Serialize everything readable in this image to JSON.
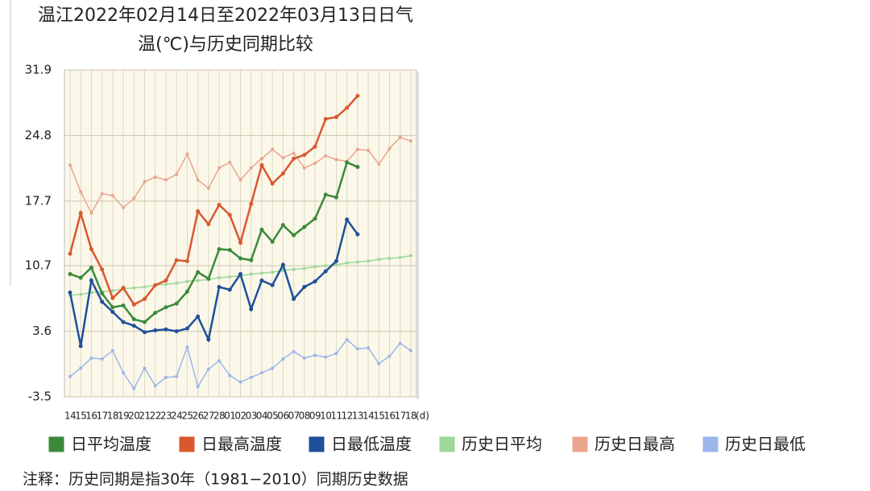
{
  "chart_data": {
    "type": "line",
    "title": [
      "温江2022年02月14日至2022年03月13日日气",
      "温(℃)与历史同期比较"
    ],
    "x_unit": "(d)",
    "note": "注释：历史同期是指30年（1981−2010）同期历史数据",
    "categories": [
      "14",
      "15",
      "16",
      "17",
      "18",
      "19",
      "20",
      "21",
      "22",
      "23",
      "24",
      "25",
      "26",
      "27",
      "28",
      "01",
      "02",
      "03",
      "04",
      "05",
      "06",
      "07",
      "08",
      "09",
      "10",
      "11",
      "12",
      "13",
      "14",
      "15",
      "16",
      "17",
      "18"
    ],
    "ylim": [
      -3.5,
      31.9
    ],
    "yticks": [
      -3.5,
      3.6,
      10.7,
      17.7,
      24.8,
      31.9
    ],
    "grid": true,
    "series": [
      {
        "name": "日平均温度",
        "color": "#3a8a3a",
        "values": [
          9.8,
          9.4,
          10.5,
          7.7,
          6.2,
          6.4,
          4.9,
          4.6,
          5.6,
          6.2,
          6.6,
          7.9,
          10.0,
          9.3,
          12.5,
          12.4,
          11.5,
          11.3,
          14.6,
          13.3,
          15.1,
          14.0,
          14.9,
          15.8,
          18.4,
          18.1,
          21.9,
          21.4,
          null,
          null,
          null,
          null,
          null
        ]
      },
      {
        "name": "日最高温度",
        "color": "#d9582e",
        "values": [
          12.0,
          16.4,
          12.5,
          10.3,
          7.2,
          8.3,
          6.5,
          7.1,
          8.6,
          9.1,
          11.3,
          11.2,
          16.6,
          15.2,
          17.3,
          16.2,
          13.2,
          17.4,
          21.6,
          19.6,
          20.7,
          22.3,
          22.7,
          23.6,
          26.6,
          26.8,
          27.8,
          29.1,
          null,
          null,
          null,
          null,
          null
        ]
      },
      {
        "name": "日最低温度",
        "color": "#1f4f9a",
        "values": [
          7.8,
          2.0,
          9.1,
          6.8,
          5.7,
          4.6,
          4.2,
          3.5,
          3.7,
          3.8,
          3.6,
          3.9,
          5.2,
          2.7,
          8.4,
          8.1,
          9.8,
          6.0,
          9.1,
          8.6,
          10.8,
          7.1,
          8.4,
          9.0,
          10.1,
          11.2,
          15.7,
          14.1,
          null,
          null,
          null,
          null,
          null
        ]
      },
      {
        "name": "历史日平均",
        "color": "#9ed79a",
        "values": [
          7.5,
          7.6,
          7.8,
          7.9,
          8.0,
          8.2,
          8.3,
          8.4,
          8.6,
          8.7,
          8.8,
          9.0,
          9.1,
          9.2,
          9.4,
          9.5,
          9.6,
          9.8,
          9.9,
          10.0,
          10.2,
          10.3,
          10.4,
          10.6,
          10.7,
          10.8,
          11.0,
          11.1,
          11.2,
          11.4,
          11.5,
          11.6,
          11.8
        ]
      },
      {
        "name": "历史日最高",
        "color": "#eaa58c",
        "values": [
          21.6,
          18.7,
          16.4,
          18.5,
          18.3,
          17.0,
          18.0,
          19.8,
          20.3,
          20.0,
          20.6,
          22.8,
          20.0,
          19.1,
          21.3,
          21.9,
          20.0,
          21.3,
          22.3,
          23.3,
          22.4,
          22.9,
          21.3,
          21.8,
          22.6,
          22.2,
          22.0,
          23.3,
          23.2,
          21.7,
          23.4,
          24.6,
          24.2
        ]
      },
      {
        "name": "历史日最低",
        "color": "#9db6ea",
        "values": [
          -1.3,
          -0.4,
          0.7,
          0.6,
          1.5,
          -0.9,
          -2.6,
          -0.4,
          -2.3,
          -1.4,
          -1.3,
          1.9,
          -2.4,
          -0.5,
          0.4,
          -1.2,
          -1.9,
          -1.4,
          -0.9,
          -0.4,
          0.6,
          1.4,
          0.7,
          1.0,
          0.8,
          1.2,
          2.7,
          1.7,
          1.8,
          0.1,
          0.9,
          2.3,
          1.5
        ]
      }
    ]
  }
}
